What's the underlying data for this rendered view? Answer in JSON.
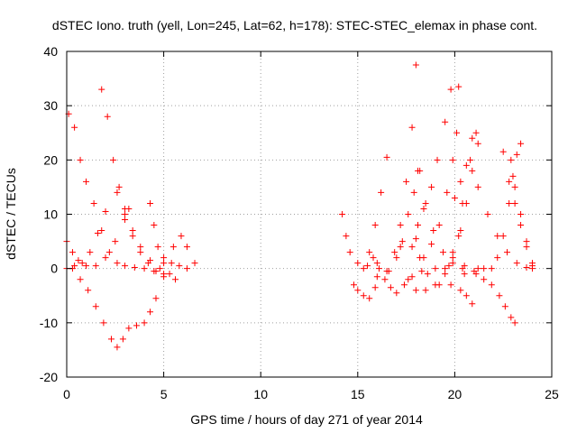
{
  "chart_data": {
    "type": "scatter",
    "title": "dSTEC Iono. truth (yell, Lon=245, Lat=62, h=178): STEC-STEC_elemax in phase cont.",
    "xlabel": "GPS time / hours of day 271 of year 2014",
    "ylabel": "dSTEC  / TECUs",
    "xlim": [
      0,
      25
    ],
    "ylim": [
      -20,
      40
    ],
    "x_ticks": [
      0,
      5,
      10,
      15,
      20,
      25
    ],
    "y_ticks": [
      -20,
      -10,
      0,
      10,
      20,
      30,
      40
    ],
    "x_tick_labels": [
      "0",
      "5",
      "10",
      "15",
      "20",
      "25"
    ],
    "y_tick_labels": [
      "-20",
      "-10",
      "0",
      "10",
      "20",
      "30",
      "40"
    ],
    "grid": true,
    "marker": "+",
    "color": "#ff0000",
    "series": [
      {
        "points": [
          [
            0.1,
            28.5
          ],
          [
            0.4,
            26
          ],
          [
            0.7,
            20
          ],
          [
            1.0,
            16
          ],
          [
            1.4,
            12
          ],
          [
            1.8,
            7
          ],
          [
            2.2,
            3
          ],
          [
            2.6,
            1
          ],
          [
            3.0,
            0.5
          ],
          [
            3.5,
            0.2
          ],
          [
            4.0,
            0
          ],
          [
            4.5,
            -0.5
          ],
          [
            5.0,
            -1
          ]
        ]
      },
      {
        "points": [
          [
            0,
            5
          ],
          [
            0.3,
            3
          ],
          [
            0.6,
            1.5
          ],
          [
            1.0,
            0.5
          ],
          [
            1.5,
            0.5
          ],
          [
            2.0,
            2
          ],
          [
            2.5,
            5
          ],
          [
            3.0,
            9
          ],
          [
            3.2,
            11
          ]
        ]
      },
      {
        "points": [
          [
            0,
            0
          ],
          [
            0.4,
            0.5
          ],
          [
            0.8,
            1
          ],
          [
            1.2,
            3
          ],
          [
            1.6,
            6.5
          ],
          [
            2.0,
            10.5
          ]
        ]
      },
      {
        "points": [
          [
            0.3,
            0
          ],
          [
            0.7,
            -2
          ],
          [
            1.1,
            -4
          ],
          [
            1.5,
            -7
          ],
          [
            1.9,
            -10
          ],
          [
            2.3,
            -13
          ],
          [
            2.6,
            -14.5
          ],
          [
            2.9,
            -13
          ],
          [
            3.2,
            -11
          ],
          [
            3.6,
            -10.5
          ],
          [
            4.0,
            -10
          ],
          [
            4.3,
            -8
          ],
          [
            4.6,
            -5.5
          ]
        ]
      },
      {
        "points": [
          [
            1.8,
            33
          ],
          [
            2.1,
            28
          ],
          [
            2.4,
            20
          ],
          [
            2.7,
            15
          ],
          [
            3.0,
            11
          ],
          [
            3.4,
            7
          ],
          [
            3.8,
            4
          ],
          [
            4.3,
            1.5
          ],
          [
            4.8,
            0
          ],
          [
            5.3,
            -1
          ]
        ]
      },
      {
        "points": [
          [
            2.6,
            14
          ],
          [
            3.0,
            10
          ],
          [
            3.4,
            6
          ],
          [
            3.8,
            3
          ],
          [
            4.2,
            1
          ],
          [
            4.6,
            -0.5
          ],
          [
            5.0,
            -1.5
          ],
          [
            5.6,
            -2
          ]
        ]
      },
      {
        "points": [
          [
            4.3,
            12
          ],
          [
            4.5,
            8
          ],
          [
            4.7,
            4
          ],
          [
            5.0,
            2
          ],
          [
            5.4,
            1
          ],
          [
            5.8,
            0.5
          ],
          [
            6.2,
            0
          ]
        ]
      },
      {
        "points": [
          [
            5.0,
            1
          ],
          [
            5.5,
            4
          ],
          [
            5.9,
            6
          ],
          [
            6.2,
            4
          ],
          [
            6.6,
            1
          ]
        ]
      },
      {
        "points": [
          [
            14.2,
            10
          ],
          [
            14.4,
            6
          ],
          [
            14.6,
            3
          ],
          [
            15.0,
            1
          ],
          [
            15.5,
            0.5
          ],
          [
            16.0,
            1
          ]
        ]
      },
      {
        "points": [
          [
            14.8,
            -3
          ],
          [
            15.0,
            -4
          ],
          [
            15.3,
            -5
          ],
          [
            15.6,
            -5.5
          ],
          [
            15.9,
            -3.5
          ]
        ]
      },
      {
        "points": [
          [
            15.3,
            0
          ],
          [
            15.6,
            3
          ],
          [
            15.9,
            8
          ],
          [
            16.2,
            14
          ],
          [
            16.5,
            20.5
          ]
        ]
      },
      {
        "points": [
          [
            15.8,
            2
          ],
          [
            16.1,
            0
          ],
          [
            16.4,
            -2
          ],
          [
            16.7,
            -3.5
          ],
          [
            17.0,
            -4.5
          ],
          [
            17.4,
            -3
          ],
          [
            17.8,
            -1.5
          ],
          [
            18.3,
            -0.5
          ],
          [
            19.0,
            0
          ],
          [
            19.7,
            0.5
          ],
          [
            20.4,
            0
          ]
        ]
      },
      {
        "points": [
          [
            16.6,
            -0.5
          ],
          [
            16.9,
            3
          ],
          [
            17.2,
            8
          ],
          [
            17.5,
            16
          ],
          [
            17.8,
            26
          ],
          [
            18.0,
            37.5
          ]
        ]
      },
      {
        "points": [
          [
            16.0,
            -1.5
          ],
          [
            16.5,
            -0.5
          ],
          [
            17.0,
            2
          ],
          [
            17.3,
            5
          ],
          [
            17.6,
            10
          ],
          [
            17.9,
            14
          ],
          [
            18.1,
            18
          ]
        ]
      },
      {
        "points": [
          [
            17.2,
            4
          ],
          [
            17.6,
            -2
          ],
          [
            18.0,
            -4
          ],
          [
            18.5,
            -4
          ],
          [
            19.0,
            -3
          ],
          [
            19.5,
            -1
          ],
          [
            19.9,
            2
          ],
          [
            20.2,
            6
          ],
          [
            20.4,
            12
          ]
        ]
      },
      {
        "points": [
          [
            17.8,
            4
          ],
          [
            18.1,
            8
          ],
          [
            18.4,
            11
          ],
          [
            18.8,
            15
          ],
          [
            19.1,
            20
          ],
          [
            19.5,
            27
          ],
          [
            19.8,
            33
          ]
        ]
      },
      {
        "points": [
          [
            18.0,
            5.5
          ],
          [
            18.2,
            2
          ],
          [
            18.6,
            -1
          ],
          [
            19.2,
            -3
          ],
          [
            19.8,
            -3
          ],
          [
            20.3,
            -4
          ],
          [
            20.6,
            -5
          ],
          [
            20.9,
            -6.5
          ]
        ]
      },
      {
        "points": [
          [
            18.4,
            2
          ],
          [
            18.8,
            4.5
          ],
          [
            19.2,
            8
          ],
          [
            19.6,
            14
          ],
          [
            19.9,
            20
          ],
          [
            20.1,
            25
          ],
          [
            20.2,
            33.5
          ]
        ]
      },
      {
        "points": [
          [
            18.2,
            18
          ],
          [
            18.5,
            12
          ],
          [
            18.9,
            7
          ],
          [
            19.4,
            3
          ],
          [
            19.9,
            1
          ],
          [
            20.5,
            0.5
          ],
          [
            21.2,
            0
          ]
        ]
      },
      {
        "points": [
          [
            19.5,
            0
          ],
          [
            19.9,
            3
          ],
          [
            20.3,
            7
          ],
          [
            20.6,
            12
          ],
          [
            20.9,
            18
          ],
          [
            21.2,
            23
          ]
        ]
      },
      {
        "points": [
          [
            20.0,
            13
          ],
          [
            20.3,
            16
          ],
          [
            20.6,
            19
          ],
          [
            20.9,
            24
          ],
          [
            21.1,
            25
          ]
        ]
      },
      {
        "points": [
          [
            20.8,
            20
          ],
          [
            21.2,
            15
          ],
          [
            21.7,
            10
          ],
          [
            22.2,
            6
          ],
          [
            22.7,
            3
          ],
          [
            23.2,
            1
          ],
          [
            23.7,
            0.2
          ],
          [
            24.0,
            0
          ]
        ]
      },
      {
        "points": [
          [
            20.5,
            -1
          ],
          [
            21.0,
            -0.5
          ],
          [
            21.5,
            0
          ],
          [
            21.9,
            0
          ],
          [
            22.2,
            2
          ],
          [
            22.5,
            6
          ],
          [
            22.8,
            12
          ],
          [
            23.0,
            17
          ],
          [
            23.2,
            21
          ],
          [
            23.4,
            23
          ]
        ]
      },
      {
        "points": [
          [
            21.1,
            -1
          ],
          [
            21.5,
            -2
          ],
          [
            21.9,
            -3
          ],
          [
            22.3,
            -5
          ],
          [
            22.6,
            -7
          ],
          [
            22.9,
            -9
          ],
          [
            23.1,
            -10
          ]
        ]
      },
      {
        "points": [
          [
            22.5,
            21.5
          ],
          [
            22.8,
            16
          ],
          [
            23.1,
            12
          ],
          [
            23.4,
            8
          ],
          [
            23.7,
            4
          ],
          [
            24.0,
            0.5
          ]
        ]
      },
      {
        "points": [
          [
            22.9,
            20
          ],
          [
            23.1,
            15
          ],
          [
            23.4,
            10
          ],
          [
            23.7,
            5
          ],
          [
            24.0,
            1
          ]
        ]
      }
    ]
  }
}
